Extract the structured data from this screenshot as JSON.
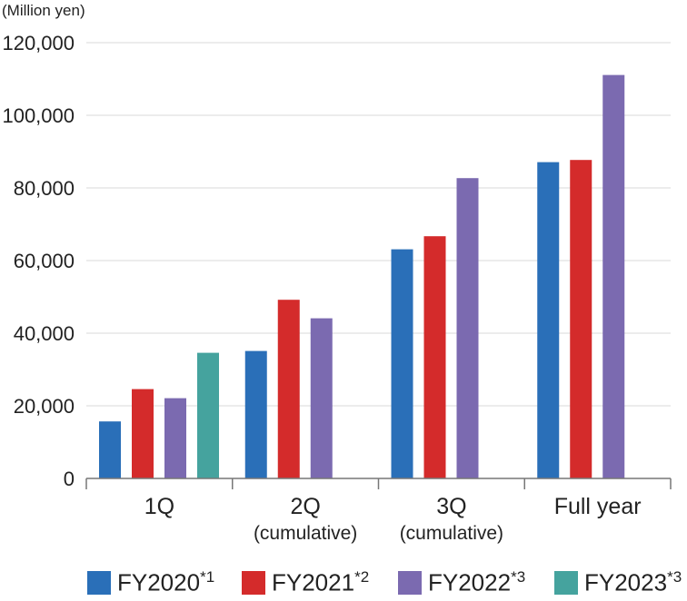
{
  "chart_data": {
    "type": "bar",
    "unit_label": "(Million yen)",
    "categories": [
      {
        "label": "1Q",
        "sublabel": ""
      },
      {
        "label": "2Q",
        "sublabel": "(cumulative)"
      },
      {
        "label": "3Q",
        "sublabel": "(cumulative)"
      },
      {
        "label": "Full year",
        "sublabel": ""
      }
    ],
    "series": [
      {
        "name": "FY2020",
        "note": "*1",
        "color": "#2a6fb8",
        "values": [
          15700,
          35100,
          63100,
          87100
        ]
      },
      {
        "name": "FY2021",
        "note": "*2",
        "color": "#d42b2b",
        "values": [
          24600,
          49200,
          66700,
          87700
        ]
      },
      {
        "name": "FY2022",
        "note": "*3",
        "color": "#7b6ab0",
        "values": [
          22100,
          44100,
          82700,
          111100
        ]
      },
      {
        "name": "FY2023",
        "note": "*3",
        "color": "#45a39e",
        "values": [
          34600,
          null,
          null,
          null
        ]
      }
    ],
    "ylim": [
      0,
      120000
    ],
    "yticks": [
      "0",
      "20,000",
      "40,000",
      "60,000",
      "80,000",
      "100,000",
      "120,000"
    ],
    "ytick_values": [
      0,
      20000,
      40000,
      60000,
      80000,
      100000,
      120000
    ],
    "grid": true,
    "legend_position": "bottom"
  }
}
